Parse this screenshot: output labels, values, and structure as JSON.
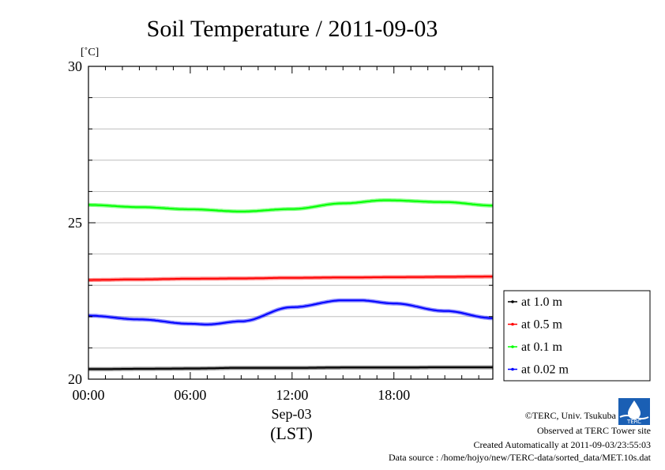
{
  "chart_data": {
    "type": "line",
    "title": "Soil Temperature / 2011-09-03",
    "ylabel": "[˚C]",
    "xlabel_date": "Sep-03",
    "xlabel_zone": "(LST)",
    "x_range_hours": [
      0,
      23.83
    ],
    "ylim": [
      20,
      30
    ],
    "y_ticks": [
      20,
      25,
      30
    ],
    "x_ticks": [
      {
        "value": 0,
        "label": "00:00"
      },
      {
        "value": 6,
        "label": "06:00"
      },
      {
        "value": 12,
        "label": "12:00"
      },
      {
        "value": 18,
        "label": "18:00"
      }
    ],
    "grid": true,
    "legend_position": "right",
    "series": [
      {
        "name": "at 1.0 m",
        "color": "#000000",
        "x": [
          0,
          3,
          6,
          9,
          12,
          15,
          18,
          21,
          23.83
        ],
        "y": [
          20.32,
          20.33,
          20.34,
          20.36,
          20.36,
          20.37,
          20.37,
          20.38,
          20.38
        ]
      },
      {
        "name": "at 0.5 m",
        "color": "#ff0000",
        "x": [
          0,
          3,
          6,
          9,
          12,
          15,
          18,
          21,
          23.83
        ],
        "y": [
          23.17,
          23.19,
          23.21,
          23.22,
          23.24,
          23.25,
          23.26,
          23.27,
          23.28
        ]
      },
      {
        "name": "at 0.1 m",
        "color": "#00ff00",
        "x": [
          0,
          3,
          6,
          9,
          12,
          15,
          17.5,
          21,
          23.83
        ],
        "y": [
          25.57,
          25.5,
          25.43,
          25.36,
          25.44,
          25.62,
          25.72,
          25.66,
          25.55
        ]
      },
      {
        "name": "at 0.02 m",
        "color": "#0000ff",
        "x": [
          0,
          3,
          6,
          7,
          9,
          12,
          15,
          16,
          18,
          21,
          23.83
        ],
        "y": [
          22.03,
          21.91,
          21.77,
          21.75,
          21.85,
          22.3,
          22.52,
          22.52,
          22.42,
          22.18,
          21.95
        ]
      }
    ]
  },
  "credits": {
    "copyright": "©TERC, Univ. Tsukuba",
    "observed": "Observed at TERC Tower site",
    "created": "Created Automatically at 2011-09-03/23:55:03",
    "source": "Data source : /home/hojyo/new/TERC-data/sorted_data/MET.10s.dat"
  },
  "logo": {
    "name": "terc-logo",
    "text": "TERC",
    "color": "#1a5fb4"
  }
}
